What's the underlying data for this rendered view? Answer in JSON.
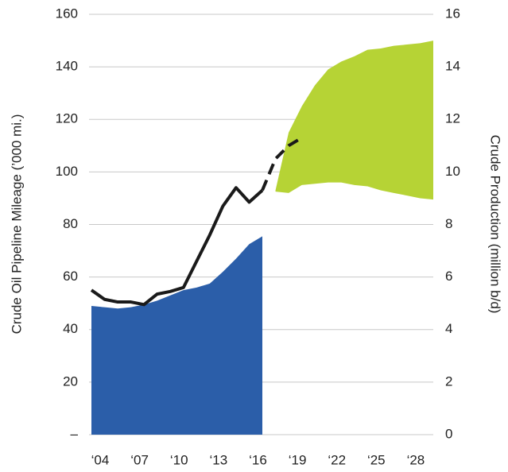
{
  "chart_data": {
    "type": "combo",
    "y_label": "Crude Oil Pipeline Mileage (’000 mi.)",
    "y2_label": "Crude Production (million b/d)",
    "xlim": [
      2004,
      2030
    ],
    "xticks": [
      {
        "value": 2004,
        "label": "‘04"
      },
      {
        "value": 2007,
        "label": "‘07"
      },
      {
        "value": 2010,
        "label": "‘10"
      },
      {
        "value": 2013,
        "label": "‘13"
      },
      {
        "value": 2016,
        "label": "‘16"
      },
      {
        "value": 2019,
        "label": "‘19"
      },
      {
        "value": 2022,
        "label": "‘22"
      },
      {
        "value": 2025,
        "label": "‘25"
      },
      {
        "value": 2028,
        "label": "‘28"
      }
    ],
    "ylim": [
      0,
      160
    ],
    "yticks": [
      {
        "value": 0,
        "label": "–"
      },
      20,
      40,
      60,
      80,
      100,
      120,
      140,
      160
    ],
    "y2lim": [
      0,
      16
    ],
    "y2ticks": [
      0,
      2,
      4,
      6,
      8,
      10,
      12,
      14,
      16
    ],
    "grid": true,
    "series": [
      {
        "type": "area",
        "axis": "y",
        "color": "#2b5ea9",
        "x": [
          2004,
          2005,
          2006,
          2007,
          2008,
          2009,
          2010,
          2011,
          2012,
          2013,
          2014,
          2015,
          2016,
          2017
        ],
        "values": [
          49,
          48.5,
          48,
          48.5,
          49.5,
          51,
          53,
          55,
          56,
          57.5,
          62,
          67,
          72.5,
          75.5
        ]
      },
      {
        "type": "band",
        "axis": "y2",
        "color": "#b6d335",
        "x": [
          2018,
          2019,
          2020,
          2021,
          2022,
          2023,
          2024,
          2025,
          2026,
          2027,
          2028,
          2029,
          2030
        ],
        "upper": [
          9.3,
          11.5,
          12.5,
          13.3,
          13.9,
          14.2,
          14.4,
          14.65,
          14.7,
          14.8,
          14.85,
          14.9,
          15.0
        ],
        "lower": [
          9.25,
          9.2,
          9.5,
          9.55,
          9.6,
          9.6,
          9.5,
          9.45,
          9.3,
          9.2,
          9.1,
          9.0,
          8.95
        ]
      },
      {
        "type": "line",
        "axis": "y2",
        "color": "#1a1a1a",
        "dashed_from": 2017,
        "x": [
          2004,
          2005,
          2006,
          2007,
          2008,
          2009,
          2010,
          2011,
          2012,
          2013,
          2014,
          2015,
          2016,
          2017,
          2018,
          2019,
          2020
        ],
        "values": [
          5.5,
          5.15,
          5.05,
          5.05,
          4.95,
          5.35,
          5.45,
          5.6,
          6.6,
          7.6,
          8.7,
          9.4,
          8.85,
          9.3,
          10.5,
          11.0,
          11.3
        ]
      }
    ]
  }
}
